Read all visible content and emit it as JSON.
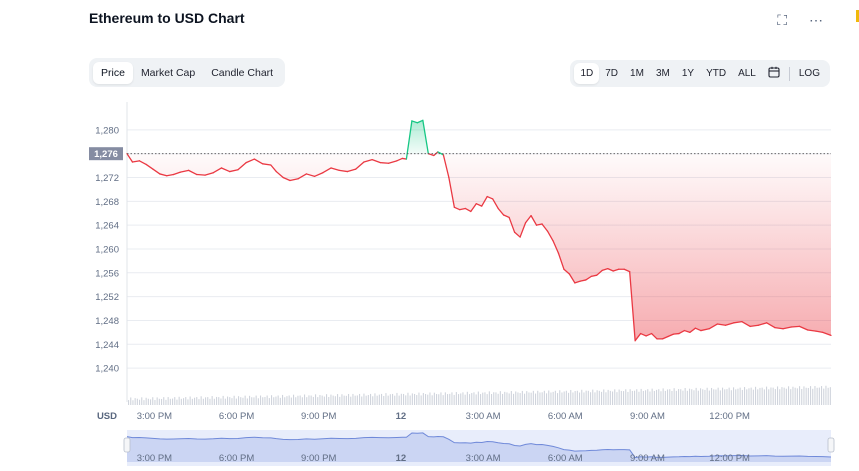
{
  "header": {
    "title": "Ethereum to USD Chart",
    "fullscreen_icon": "expand-icon",
    "more_icon": "more-icon"
  },
  "tabs": [
    {
      "label": "Price",
      "active": true
    },
    {
      "label": "Market Cap",
      "active": false
    },
    {
      "label": "Candle Chart",
      "active": false
    }
  ],
  "ranges": [
    {
      "label": "1D",
      "active": true
    },
    {
      "label": "7D",
      "active": false
    },
    {
      "label": "1M",
      "active": false
    },
    {
      "label": "3M",
      "active": false
    },
    {
      "label": "1Y",
      "active": false
    },
    {
      "label": "YTD",
      "active": false
    },
    {
      "label": "ALL",
      "active": false
    }
  ],
  "calendar_icon": "calendar-icon",
  "log_label": "LOG",
  "colors": {
    "up": "#16c784",
    "down": "#ea3943",
    "navigator": "#a9b9e8",
    "current_label_bg": "#858ca2"
  },
  "chart_data": {
    "type": "line",
    "ylabel": "USD",
    "ylim": [
      1238,
      1283
    ],
    "yticks": [
      1240,
      1244,
      1248,
      1252,
      1256,
      1260,
      1264,
      1268,
      1272,
      1276,
      1280
    ],
    "xlim": [
      0,
      25.7
    ],
    "xticks": [
      {
        "x": 1,
        "label": "3:00 PM"
      },
      {
        "x": 4,
        "label": "6:00 PM"
      },
      {
        "x": 7,
        "label": "9:00 PM"
      },
      {
        "x": 10,
        "label": "12"
      },
      {
        "x": 13,
        "label": "3:00 AM"
      },
      {
        "x": 16,
        "label": "6:00 AM"
      },
      {
        "x": 19,
        "label": "9:00 AM"
      },
      {
        "x": 22,
        "label": "12:00 PM"
      }
    ],
    "current_price": 1276,
    "current_price_label": "1,276",
    "series": [
      {
        "points": [
          [
            0.0,
            1276.0
          ],
          [
            0.2,
            1274.6
          ],
          [
            0.45,
            1274.8
          ],
          [
            0.7,
            1274.2
          ],
          [
            0.95,
            1273.4
          ],
          [
            1.2,
            1272.6
          ],
          [
            1.45,
            1272.3
          ],
          [
            1.7,
            1272.5
          ],
          [
            1.95,
            1272.9
          ],
          [
            2.25,
            1273.2
          ],
          [
            2.55,
            1272.5
          ],
          [
            2.85,
            1272.4
          ],
          [
            3.15,
            1272.8
          ],
          [
            3.45,
            1273.6
          ],
          [
            3.75,
            1273.0
          ],
          [
            4.05,
            1273.3
          ],
          [
            4.35,
            1274.5
          ],
          [
            4.65,
            1275.1
          ],
          [
            4.95,
            1274.3
          ],
          [
            5.25,
            1274.1
          ],
          [
            5.45,
            1273.0
          ],
          [
            5.7,
            1272.0
          ],
          [
            5.95,
            1271.5
          ],
          [
            6.25,
            1271.8
          ],
          [
            6.55,
            1272.6
          ],
          [
            6.85,
            1272.2
          ],
          [
            7.15,
            1272.8
          ],
          [
            7.45,
            1273.6
          ],
          [
            7.75,
            1273.2
          ],
          [
            8.05,
            1273.0
          ],
          [
            8.35,
            1273.4
          ],
          [
            8.65,
            1274.6
          ],
          [
            8.95,
            1275.0
          ],
          [
            9.25,
            1274.5
          ],
          [
            9.55,
            1274.4
          ],
          [
            9.85,
            1274.8
          ],
          [
            10.05,
            1275.2
          ],
          [
            10.2,
            1275.1
          ],
          [
            10.4,
            1281.5
          ],
          [
            10.6,
            1281.2
          ],
          [
            10.8,
            1281.6
          ],
          [
            11.0,
            1276.0
          ],
          [
            11.2,
            1275.7
          ],
          [
            11.35,
            1276.3
          ],
          [
            11.55,
            1275.8
          ],
          [
            11.75,
            1272.0
          ],
          [
            11.95,
            1267.0
          ],
          [
            12.15,
            1266.6
          ],
          [
            12.35,
            1266.8
          ],
          [
            12.55,
            1266.3
          ],
          [
            12.75,
            1267.6
          ],
          [
            12.95,
            1267.2
          ],
          [
            13.15,
            1268.8
          ],
          [
            13.35,
            1268.4
          ],
          [
            13.55,
            1266.8
          ],
          [
            13.75,
            1265.7
          ],
          [
            13.95,
            1265.3
          ],
          [
            14.15,
            1262.8
          ],
          [
            14.35,
            1262.0
          ],
          [
            14.55,
            1264.4
          ],
          [
            14.75,
            1265.6
          ],
          [
            14.95,
            1264.0
          ],
          [
            15.15,
            1264.2
          ],
          [
            15.35,
            1263.0
          ],
          [
            15.55,
            1261.4
          ],
          [
            15.75,
            1259.3
          ],
          [
            15.95,
            1256.6
          ],
          [
            16.15,
            1255.8
          ],
          [
            16.35,
            1254.3
          ],
          [
            16.55,
            1254.6
          ],
          [
            16.75,
            1254.8
          ],
          [
            16.95,
            1255.4
          ],
          [
            17.15,
            1255.6
          ],
          [
            17.35,
            1256.4
          ],
          [
            17.55,
            1256.7
          ],
          [
            17.75,
            1256.3
          ],
          [
            17.95,
            1256.6
          ],
          [
            18.15,
            1256.6
          ],
          [
            18.35,
            1256.2
          ],
          [
            18.55,
            1244.6
          ],
          [
            18.75,
            1245.8
          ],
          [
            18.95,
            1245.4
          ],
          [
            19.15,
            1245.8
          ],
          [
            19.35,
            1244.9
          ],
          [
            19.55,
            1244.9
          ],
          [
            19.75,
            1245.3
          ],
          [
            19.95,
            1245.7
          ],
          [
            20.15,
            1245.8
          ],
          [
            20.35,
            1246.3
          ],
          [
            20.55,
            1246.0
          ],
          [
            20.75,
            1246.7
          ],
          [
            20.95,
            1246.3
          ],
          [
            21.25,
            1246.6
          ],
          [
            21.55,
            1247.4
          ],
          [
            21.85,
            1247.2
          ],
          [
            22.15,
            1247.6
          ],
          [
            22.45,
            1247.8
          ],
          [
            22.75,
            1247.0
          ],
          [
            23.05,
            1247.2
          ],
          [
            23.35,
            1247.6
          ],
          [
            23.65,
            1246.8
          ],
          [
            23.95,
            1246.6
          ],
          [
            24.25,
            1246.9
          ],
          [
            24.55,
            1247.0
          ],
          [
            24.85,
            1246.4
          ],
          [
            25.15,
            1246.2
          ],
          [
            25.4,
            1246.0
          ],
          [
            25.7,
            1245.5
          ]
        ]
      }
    ]
  }
}
